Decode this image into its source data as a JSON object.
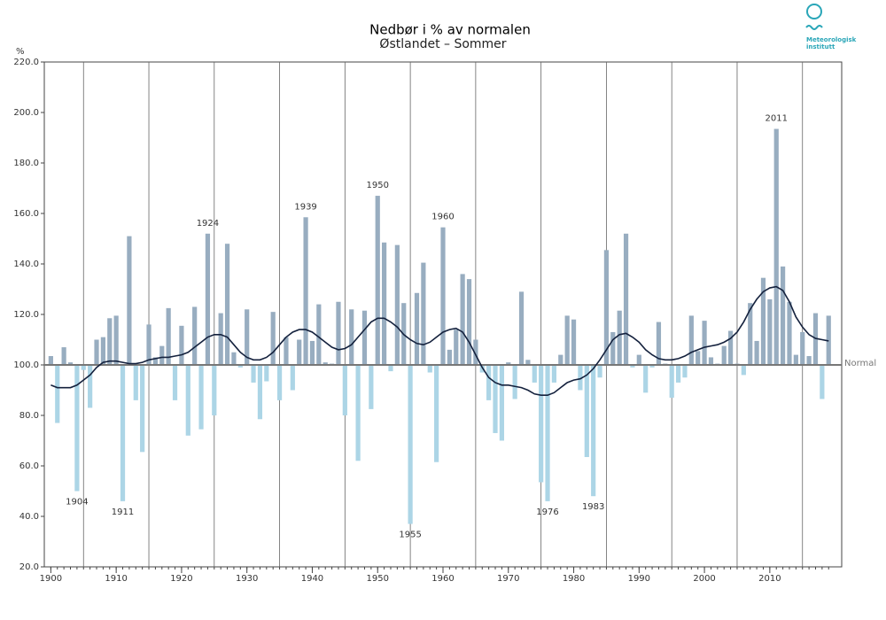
{
  "chart_data": {
    "type": "bar",
    "title": "Nedbør i % av normalen",
    "subtitle": "Østlandet – Sommer",
    "y_label": "%",
    "logo_text": [
      "Meteorologisk",
      "institutt"
    ],
    "x": [
      1900,
      1901,
      1902,
      1903,
      1904,
      1905,
      1906,
      1907,
      1908,
      1909,
      1910,
      1911,
      1912,
      1913,
      1914,
      1915,
      1916,
      1917,
      1918,
      1919,
      1920,
      1921,
      1922,
      1923,
      1924,
      1925,
      1926,
      1927,
      1928,
      1929,
      1930,
      1931,
      1932,
      1933,
      1934,
      1935,
      1936,
      1937,
      1938,
      1939,
      1940,
      1941,
      1942,
      1943,
      1944,
      1945,
      1946,
      1947,
      1948,
      1949,
      1950,
      1951,
      1952,
      1953,
      1954,
      1955,
      1956,
      1957,
      1958,
      1959,
      1960,
      1961,
      1962,
      1963,
      1964,
      1965,
      1966,
      1967,
      1968,
      1969,
      1970,
      1971,
      1972,
      1973,
      1974,
      1975,
      1976,
      1977,
      1978,
      1979,
      1980,
      1981,
      1982,
      1983,
      1984,
      1985,
      1986,
      1987,
      1988,
      1989,
      1990,
      1991,
      1992,
      1993,
      1994,
      1995,
      1996,
      1997,
      1998,
      1999,
      2000,
      2001,
      2002,
      2003,
      2004,
      2005,
      2006,
      2007,
      2008,
      2009,
      2010,
      2011,
      2012,
      2013,
      2014,
      2015,
      2016,
      2017,
      2018,
      2019
    ],
    "values": [
      103.5,
      77,
      107,
      101,
      50,
      98,
      83,
      110,
      111,
      118.5,
      119.5,
      46,
      151,
      86,
      65.5,
      116,
      103,
      107.5,
      122.5,
      86,
      115.5,
      72,
      123,
      74.5,
      152,
      80,
      120.5,
      148,
      105,
      99,
      122,
      93,
      78.5,
      93.5,
      121,
      86,
      111,
      90,
      110,
      158.5,
      109.5,
      124,
      101,
      100.5,
      125,
      80,
      122,
      62,
      121.5,
      82.5,
      167,
      148.5,
      97.5,
      147.5,
      124.5,
      37,
      128.5,
      140.5,
      97,
      61.5,
      154.5,
      106,
      114,
      136,
      134,
      110,
      97,
      86,
      73,
      70,
      101,
      86.5,
      129,
      102,
      93,
      53.5,
      46,
      93,
      104,
      119.5,
      118,
      90,
      63.5,
      48,
      95,
      145.5,
      113,
      121.5,
      152,
      99,
      104,
      89,
      99,
      117,
      100.5,
      87,
      93,
      95,
      119.5,
      105.5,
      117.5,
      103,
      100.5,
      107.5,
      113.5,
      100.5,
      96,
      124.5,
      109.5,
      134.5,
      126,
      193.5,
      139,
      125,
      104,
      113,
      103.5,
      120.5,
      86.5,
      119.5
    ],
    "smooth": [
      92,
      91,
      91,
      91,
      92,
      94,
      96,
      99,
      101,
      101.5,
      101.5,
      101,
      100.5,
      100.5,
      101,
      102,
      102.5,
      103,
      103,
      103.5,
      104,
      105,
      107,
      109,
      111,
      112,
      112,
      111,
      108,
      105,
      103,
      102,
      102,
      103,
      105,
      108,
      111,
      113,
      114,
      114,
      113,
      111,
      109,
      107,
      106,
      106.5,
      108,
      111,
      114,
      117,
      118.5,
      118.5,
      117,
      115,
      112,
      110,
      108.5,
      108,
      109,
      111,
      113,
      114,
      114.5,
      113,
      109,
      104,
      99,
      95,
      93,
      92,
      92,
      91.5,
      91,
      90,
      88.5,
      88,
      88,
      89,
      91,
      93,
      94,
      94.5,
      96,
      98.5,
      102,
      106,
      110,
      112,
      112.5,
      111,
      109,
      106,
      104,
      102.5,
      102,
      102,
      102.5,
      103.5,
      105,
      106,
      107,
      107.5,
      108,
      109,
      110.5,
      113,
      117,
      122,
      126,
      129,
      130.5,
      131,
      129.5,
      125,
      119,
      115,
      112,
      110.5,
      110,
      109.5
    ],
    "annotations": [
      {
        "label": "1904",
        "x": 1904
      },
      {
        "label": "1911",
        "x": 1911
      },
      {
        "label": "1924",
        "x": 1924
      },
      {
        "label": "1939",
        "x": 1939
      },
      {
        "label": "1950",
        "x": 1950
      },
      {
        "label": "1955",
        "x": 1955
      },
      {
        "label": "1960",
        "x": 1960
      },
      {
        "label": "1976",
        "x": 1976
      },
      {
        "label": "1983",
        "x": 1983
      },
      {
        "label": "2011",
        "x": 2011
      }
    ],
    "normal": {
      "value": 100,
      "label": "Normal"
    },
    "colors": {
      "above": "#98adc0",
      "below": "#acd5e6",
      "line": "#14213d",
      "normal": "#777777"
    },
    "xlim": [
      1899,
      2021
    ],
    "xticks": [
      1900,
      1910,
      1920,
      1930,
      1940,
      1950,
      1960,
      1970,
      1980,
      1990,
      2000,
      2010
    ],
    "xgrid": [
      1905,
      1915,
      1925,
      1935,
      1945,
      1955,
      1965,
      1975,
      1985,
      1995,
      2005,
      2015
    ],
    "ylim": [
      20,
      220
    ],
    "yticks": [
      {
        "value": 20,
        "label": "20.0"
      },
      {
        "value": 40,
        "label": "40.0"
      },
      {
        "value": 60,
        "label": "60.0"
      },
      {
        "value": 80,
        "label": "80.0"
      },
      {
        "value": 100,
        "label": "100.0"
      },
      {
        "value": 120,
        "label": "120.0"
      },
      {
        "value": 140,
        "label": "140.0"
      },
      {
        "value": 160,
        "label": "160.0"
      },
      {
        "value": 180,
        "label": "180.0"
      },
      {
        "value": 200,
        "label": "200.0"
      },
      {
        "value": 220,
        "label": "220.0"
      }
    ],
    "grid": true
  }
}
